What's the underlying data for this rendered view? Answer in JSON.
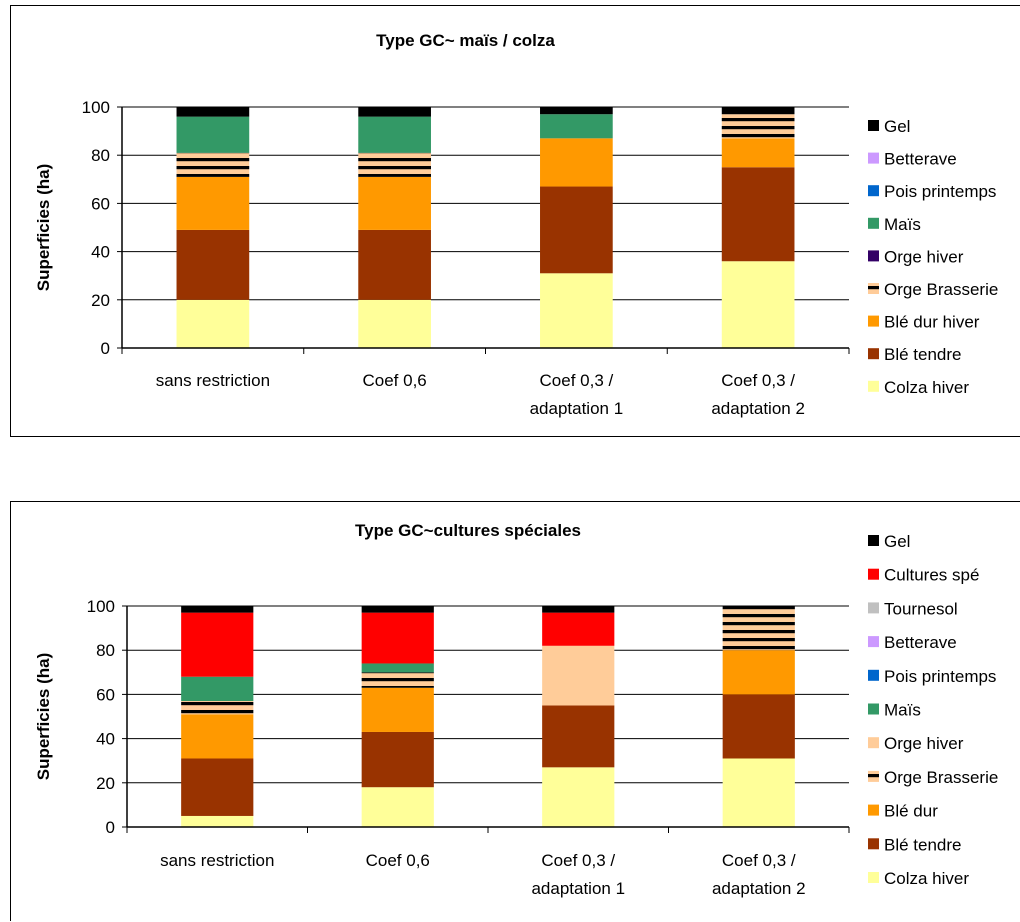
{
  "chart_data": [
    {
      "type": "bar",
      "stacked": true,
      "title": "Type GC~ maïs / colza",
      "xlabel": "",
      "ylabel": "Superficies (ha)",
      "ylim": [
        0,
        100
      ],
      "yticks": [
        0,
        20,
        40,
        60,
        80,
        100
      ],
      "grid": true,
      "legend_position": "right",
      "categories": [
        [
          "sans restriction"
        ],
        [
          "Coef 0,6"
        ],
        [
          "Coef 0,3 /",
          "adaptation 1"
        ],
        [
          "Coef 0,3 /",
          "adaptation 2"
        ]
      ],
      "series": [
        {
          "name": "Colza hiver",
          "color": "#FFFF99",
          "pattern": "solid",
          "values": [
            20,
            20,
            31,
            36
          ]
        },
        {
          "name": "Blé tendre",
          "color": "#993300",
          "pattern": "solid",
          "values": [
            29,
            29,
            36,
            39
          ]
        },
        {
          "name": "Blé dur hiver",
          "color": "#FF9900",
          "pattern": "solid",
          "values": [
            22,
            22,
            20,
            12
          ]
        },
        {
          "name": "Orge Brasserie",
          "color": "#FFCC99",
          "pattern": "stripes",
          "values": [
            10,
            10,
            0,
            10
          ]
        },
        {
          "name": "Orge hiver",
          "color": "#330066",
          "pattern": "solid",
          "values": [
            0,
            0,
            0,
            0
          ]
        },
        {
          "name": "Maïs",
          "color": "#339966",
          "pattern": "solid",
          "values": [
            15,
            15,
            10,
            0
          ]
        },
        {
          "name": "Pois printemps",
          "color": "#0066CC",
          "pattern": "solid",
          "values": [
            0,
            0,
            0,
            0
          ]
        },
        {
          "name": "Betterave",
          "color": "#CC99FF",
          "pattern": "solid",
          "values": [
            0,
            0,
            0,
            0
          ]
        },
        {
          "name": "Gel",
          "color": "#000000",
          "pattern": "solid",
          "values": [
            4,
            4,
            3,
            3
          ]
        }
      ]
    },
    {
      "type": "bar",
      "stacked": true,
      "title": "Type GC~cultures spéciales",
      "xlabel": "",
      "ylabel": "Superficies (ha)",
      "ylim": [
        0,
        100
      ],
      "yticks": [
        0,
        20,
        40,
        60,
        80,
        100
      ],
      "grid": true,
      "legend_position": "right",
      "categories": [
        [
          "sans restriction"
        ],
        [
          "Coef 0,6"
        ],
        [
          "Coef 0,3 /",
          "adaptation 1"
        ],
        [
          "Coef 0,3 /",
          "adaptation 2"
        ]
      ],
      "series": [
        {
          "name": "Colza hiver",
          "color": "#FFFF99",
          "pattern": "solid",
          "values": [
            5,
            18,
            27,
            31
          ]
        },
        {
          "name": "Blé tendre",
          "color": "#993300",
          "pattern": "solid",
          "values": [
            26,
            25,
            28,
            29
          ]
        },
        {
          "name": "Blé dur",
          "color": "#FF9900",
          "pattern": "solid",
          "values": [
            20,
            20,
            0,
            20
          ]
        },
        {
          "name": "Orge Brasserie",
          "color": "#FFCC99",
          "pattern": "stripes",
          "values": [
            6,
            7,
            0,
            20
          ]
        },
        {
          "name": "Orge hiver",
          "color": "#FFCC99",
          "pattern": "solid",
          "values": [
            0,
            0,
            27,
            0
          ]
        },
        {
          "name": "Maïs",
          "color": "#339966",
          "pattern": "solid",
          "values": [
            11,
            4,
            0,
            0
          ]
        },
        {
          "name": "Pois printemps",
          "color": "#0066CC",
          "pattern": "solid",
          "values": [
            0,
            0,
            0,
            0
          ]
        },
        {
          "name": "Betterave",
          "color": "#CC99FF",
          "pattern": "solid",
          "values": [
            0,
            0,
            0,
            0
          ]
        },
        {
          "name": "Tournesol",
          "color": "#C0C0C0",
          "pattern": "solid",
          "values": [
            0,
            0,
            0,
            0
          ]
        },
        {
          "name": "Cultures spé",
          "color": "#FF0000",
          "pattern": "solid",
          "values": [
            29,
            23,
            15,
            0
          ]
        },
        {
          "name": "Gel",
          "color": "#000000",
          "pattern": "solid",
          "values": [
            3,
            3,
            3,
            0
          ]
        }
      ]
    }
  ]
}
